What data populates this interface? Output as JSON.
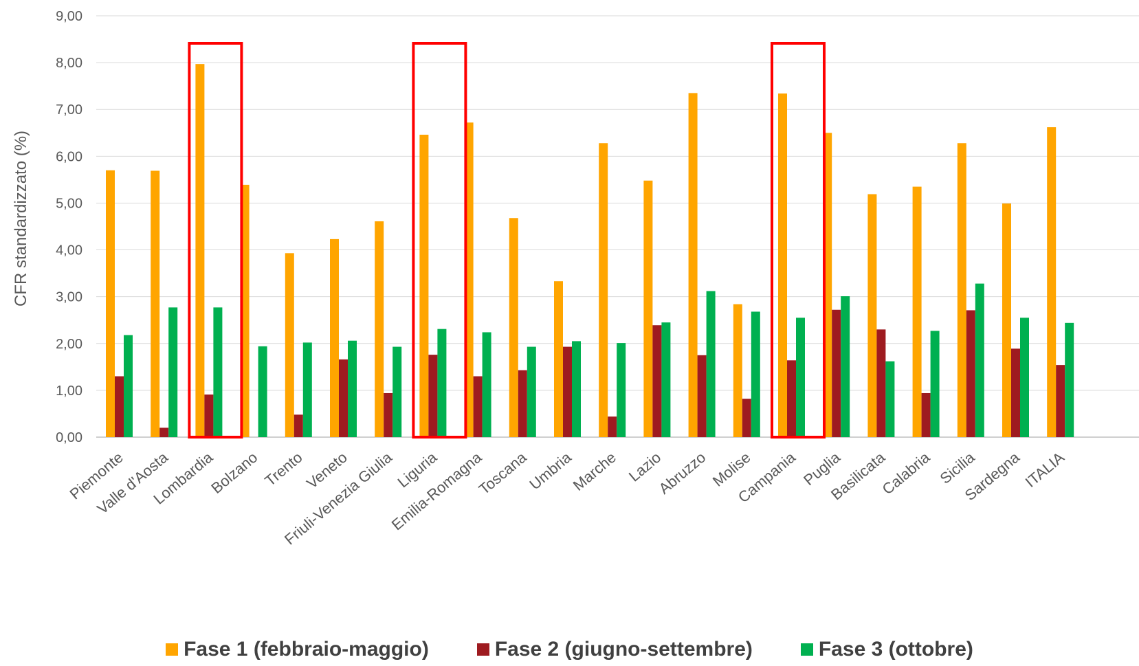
{
  "chart_data": {
    "type": "bar",
    "ylabel": "CFR standardizzato (%)",
    "ylim": [
      0,
      9
    ],
    "yticks": [
      "0,00",
      "1,00",
      "2,00",
      "3,00",
      "4,00",
      "5,00",
      "6,00",
      "7,00",
      "8,00",
      "9,00"
    ],
    "grid": true,
    "legend_position": "bottom",
    "categories": [
      "Piemonte",
      "Valle d'Aosta",
      "Lombardia",
      "Bolzano",
      "Trento",
      "Veneto",
      "Friuli-Venezia Giulia",
      "Liguria",
      "Emilia-Romagna",
      "Toscana",
      "Umbria",
      "Marche",
      "Lazio",
      "Abruzzo",
      "Molise",
      "Campania",
      "Puglia",
      "Basilicata",
      "Calabria",
      "Sicilia",
      "Sardegna",
      "ITALIA"
    ],
    "series": [
      {
        "name": "Fase 1 (febbraio-maggio)",
        "color": "#FFA500",
        "values": [
          5.7,
          5.69,
          7.97,
          5.39,
          3.93,
          4.23,
          4.61,
          6.46,
          6.72,
          4.68,
          3.33,
          6.28,
          5.48,
          7.35,
          2.84,
          7.34,
          6.5,
          5.19,
          5.35,
          6.28,
          4.99,
          6.62
        ]
      },
      {
        "name": "Fase 2 (giugno-settembre)",
        "color": "#9E1B20",
        "values": [
          1.3,
          0.2,
          0.91,
          0,
          0.48,
          1.66,
          0.94,
          1.76,
          1.3,
          1.43,
          1.93,
          0.44,
          2.39,
          1.75,
          0.82,
          1.64,
          2.72,
          2.3,
          0.94,
          2.71,
          1.89,
          1.54
        ]
      },
      {
        "name": "Fase 3 (ottobre)",
        "color": "#00B050",
        "values": [
          2.18,
          2.77,
          2.77,
          1.94,
          2.02,
          2.06,
          1.93,
          2.31,
          2.24,
          1.93,
          2.05,
          2.01,
          2.45,
          3.12,
          2.68,
          2.55,
          3.01,
          1.62,
          2.27,
          3.28,
          2.55,
          2.44
        ]
      }
    ],
    "highlighted_categories": [
      "Lombardia",
      "Liguria",
      "Campania"
    ],
    "highlight_color": "#FF0000"
  }
}
